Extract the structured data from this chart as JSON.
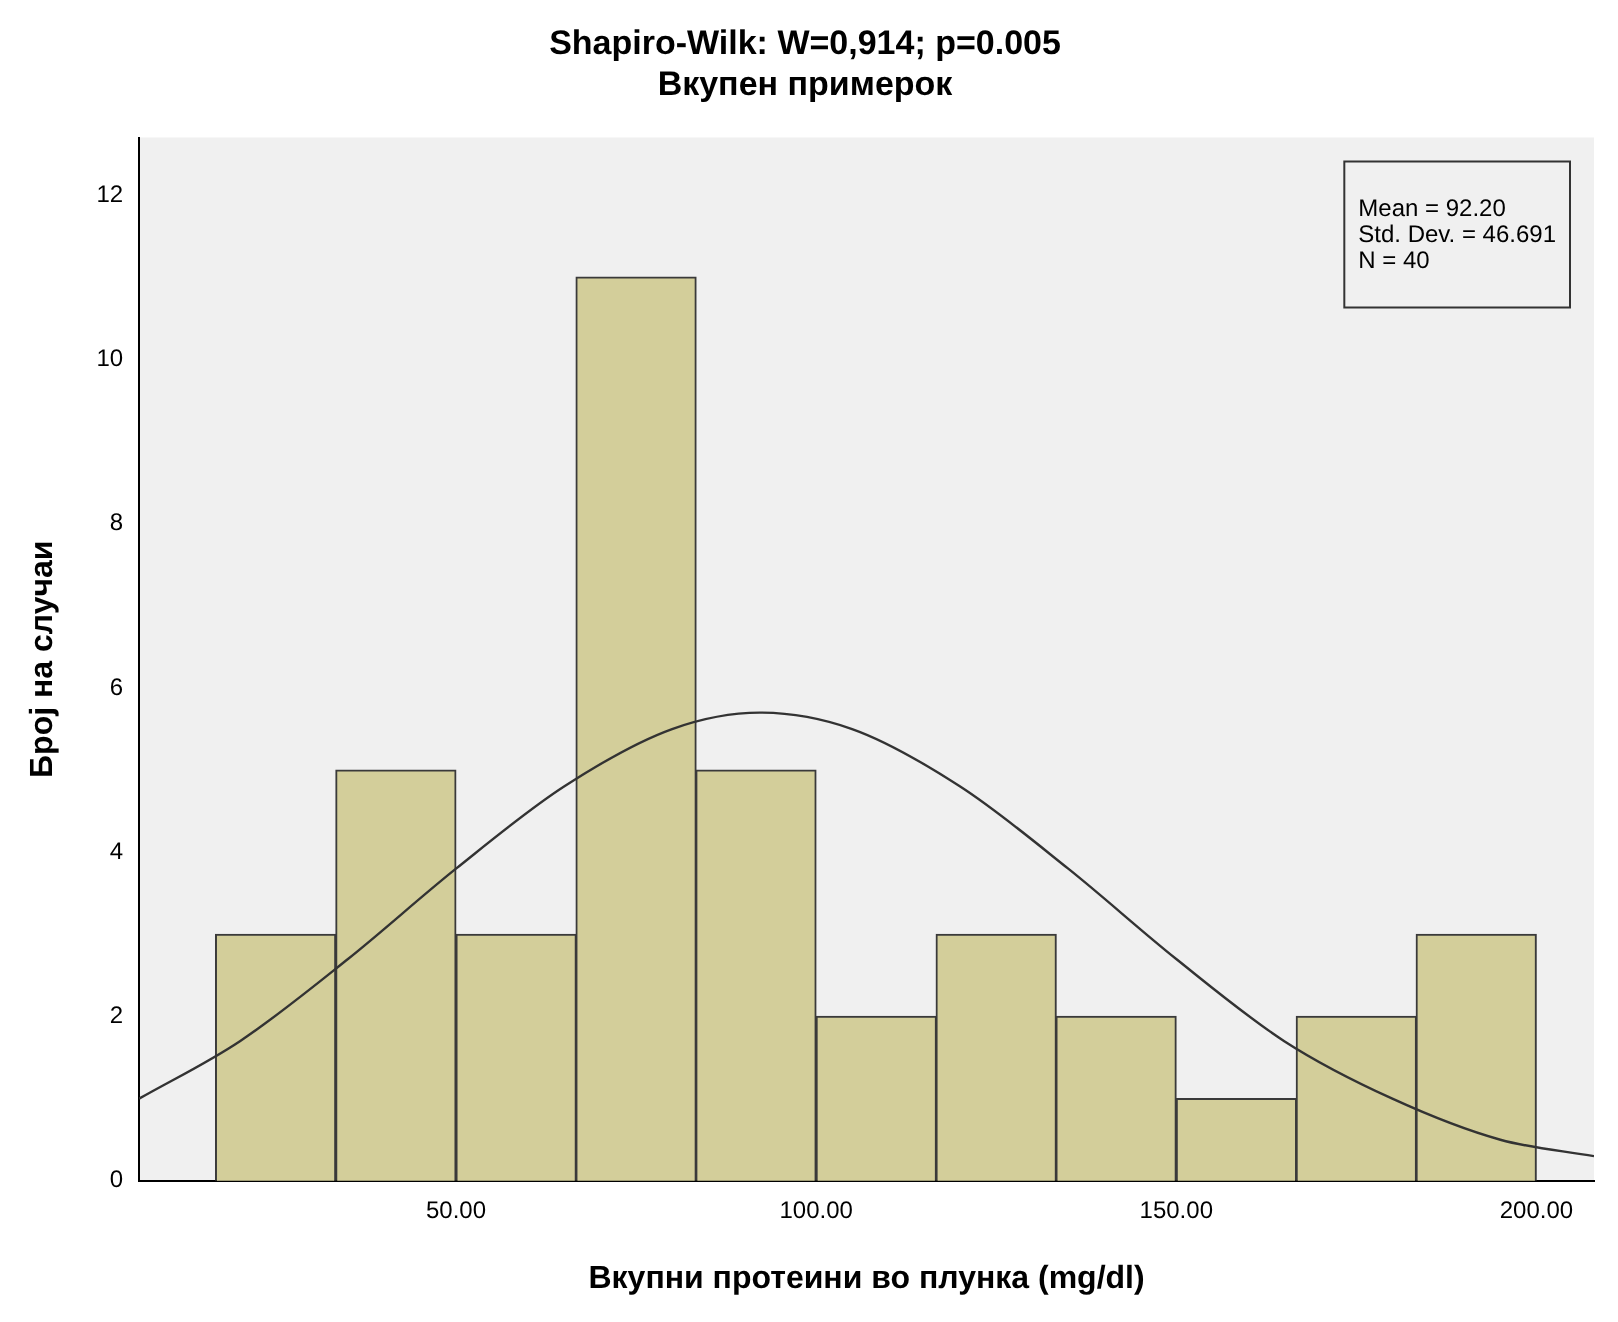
{
  "chart_data": {
    "type": "histogram",
    "title": "Shapiro-Wilk: W=0,914; p=0.005",
    "subtitle": "Вкупен примерок",
    "xlabel": "Вкупни протеини во плунка (mg/dl)",
    "ylabel": "Број на случаи",
    "bins": [
      16.6,
      33.3,
      50,
      66.7,
      83.3,
      100,
      116.7,
      133.3,
      150,
      166.7,
      183.3,
      200
    ],
    "values": [
      3,
      5,
      3,
      11,
      5,
      2,
      3,
      2,
      1,
      2,
      3
    ],
    "color": "#d3ce9a",
    "series": [
      {
        "type": "line",
        "color": "#333333",
        "x": [
          6,
          20,
          35,
          50,
          65,
          80,
          92.2,
          105,
          120,
          135,
          150,
          165,
          180,
          195,
          208
        ],
        "values": [
          1.0,
          1.7,
          2.7,
          3.8,
          4.8,
          5.5,
          5.7,
          5.5,
          4.8,
          3.8,
          2.7,
          1.7,
          1.0,
          0.5,
          0.3
        ]
      }
    ],
    "annotations": [
      "Mean = 92.20",
      "Std. Dev. = 46.691",
      "N = 40"
    ],
    "xlim": [
      6,
      208
    ],
    "xticks": [
      {
        "value": 50,
        "label": "50.00"
      },
      {
        "value": 100,
        "label": "100.00"
      },
      {
        "value": 150,
        "label": "150.00"
      },
      {
        "value": 200,
        "label": "200.00"
      }
    ],
    "ylim": [
      0,
      12.7
    ],
    "yticks": [
      0,
      2,
      4,
      6,
      8,
      10,
      12
    ],
    "grid": false,
    "legend": false
  }
}
